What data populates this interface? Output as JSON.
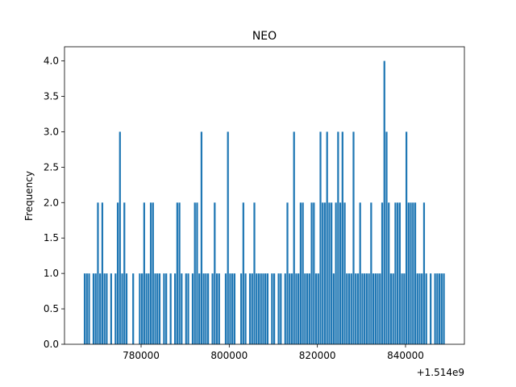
{
  "chart_data": {
    "type": "histogram",
    "title": "NEO",
    "ylabel": "Frequency",
    "x_offset_label": "+1.514e9",
    "color": "#1f77b4",
    "bins": [
      1514766000,
      1514766500,
      1514767000,
      1514767500,
      1514768000,
      1514768500,
      1514769000,
      1514769500,
      1514770000,
      1514770500,
      1514771000,
      1514771500,
      1514772000,
      1514772500,
      1514773000,
      1514773500,
      1514774000,
      1514774500,
      1514775000,
      1514775500,
      1514776000,
      1514776500,
      1514777000,
      1514777500,
      1514778000,
      1514778500,
      1514779000,
      1514779500,
      1514780000,
      1514780500,
      1514781000,
      1514781500,
      1514782000,
      1514782500,
      1514783000,
      1514783500,
      1514784000,
      1514784500,
      1514785000,
      1514785500,
      1514786000,
      1514786500,
      1514787000,
      1514787500,
      1514788000,
      1514788500,
      1514789000,
      1514789500,
      1514790000,
      1514790500,
      1514791000,
      1514791500,
      1514792000,
      1514792500,
      1514793000,
      1514793500,
      1514794000,
      1514794500,
      1514795000,
      1514795500,
      1514796000,
      1514796500,
      1514797000,
      1514797500,
      1514798000,
      1514798500,
      1514799000,
      1514799500,
      1514800000,
      1514800500,
      1514801000,
      1514801500,
      1514802000,
      1514802500,
      1514803000,
      1514803500,
      1514804000,
      1514804500,
      1514805000,
      1514805500,
      1514806000,
      1514806500,
      1514807000,
      1514807500,
      1514808000,
      1514808500,
      1514809000,
      1514809500,
      1514810000,
      1514810500,
      1514811000,
      1514811500,
      1514812000,
      1514812500,
      1514813000,
      1514813500,
      1514814000,
      1514814500,
      1514815000,
      1514815500,
      1514816000,
      1514816500,
      1514817000,
      1514817500,
      1514818000,
      1514818500,
      1514819000,
      1514819500,
      1514820000,
      1514820500,
      1514821000,
      1514821500,
      1514822000,
      1514822500,
      1514823000,
      1514823500,
      1514824000,
      1514824500,
      1514825000,
      1514825500,
      1514826000,
      1514826500,
      1514827000,
      1514827500,
      1514828000,
      1514828500,
      1514829000,
      1514829500,
      1514830000,
      1514830500,
      1514831000,
      1514831500,
      1514832000,
      1514832500,
      1514833000,
      1514833500,
      1514834000,
      1514834500,
      1514835000,
      1514835500,
      1514836000,
      1514836500,
      1514837000,
      1514837500,
      1514838000,
      1514838500,
      1514839000,
      1514839500,
      1514840000,
      1514840500,
      1514841000,
      1514841500,
      1514842000,
      1514842500,
      1514843000,
      1514843500,
      1514844000,
      1514844500,
      1514845000,
      1514845500,
      1514846000,
      1514846500,
      1514847000,
      1514847500,
      1514848000,
      1514848500,
      1514849000,
      1514849500,
      1514850000,
      1514850500,
      1514851000
    ],
    "values": [
      0,
      0,
      1,
      1,
      1,
      0,
      1,
      1,
      2,
      1,
      2,
      1,
      1,
      0,
      1,
      0,
      1,
      2,
      3,
      1,
      2,
      1,
      0,
      0,
      1,
      0,
      0,
      1,
      1,
      2,
      1,
      1,
      2,
      2,
      1,
      1,
      1,
      0,
      1,
      1,
      0,
      1,
      0,
      1,
      2,
      2,
      1,
      0,
      1,
      1,
      0,
      1,
      2,
      2,
      1,
      3,
      1,
      1,
      1,
      0,
      1,
      2,
      1,
      1,
      0,
      0,
      1,
      3,
      1,
      1,
      1,
      0,
      0,
      1,
      2,
      1,
      0,
      1,
      1,
      2,
      1,
      1,
      1,
      1,
      1,
      1,
      0,
      1,
      1,
      0,
      1,
      1,
      0,
      1,
      2,
      1,
      1,
      3,
      1,
      1,
      2,
      2,
      1,
      1,
      1,
      2,
      2,
      1,
      1,
      3,
      2,
      2,
      3,
      2,
      2,
      1,
      2,
      3,
      2,
      3,
      2,
      1,
      1,
      1,
      3,
      1,
      1,
      2,
      1,
      1,
      1,
      1,
      2,
      1,
      1,
      1,
      1,
      2,
      4,
      3,
      2,
      1,
      1,
      2,
      2,
      2,
      1,
      1,
      3,
      2,
      2,
      2,
      2,
      1,
      1,
      1,
      2,
      1,
      0,
      1,
      0,
      1,
      1,
      1,
      1,
      1,
      0,
      0,
      0,
      0
    ],
    "xlim": [
      1514762620,
      1514853360
    ],
    "xticks": [
      {
        "value": 1514780000,
        "label": "780000"
      },
      {
        "value": 1514800000,
        "label": "800000"
      },
      {
        "value": 1514820000,
        "label": "820000"
      },
      {
        "value": 1514840000,
        "label": "840000"
      }
    ],
    "ylim": [
      0,
      4.2
    ],
    "yticks": [
      {
        "value": 0,
        "label": "0.0"
      },
      {
        "value": 0.5,
        "label": "0.5"
      },
      {
        "value": 1,
        "label": "1.0"
      },
      {
        "value": 1.5,
        "label": "1.5"
      },
      {
        "value": 2,
        "label": "2.0"
      },
      {
        "value": 2.5,
        "label": "2.5"
      },
      {
        "value": 3,
        "label": "3.0"
      },
      {
        "value": 3.5,
        "label": "3.5"
      },
      {
        "value": 4,
        "label": "4.0"
      }
    ]
  }
}
